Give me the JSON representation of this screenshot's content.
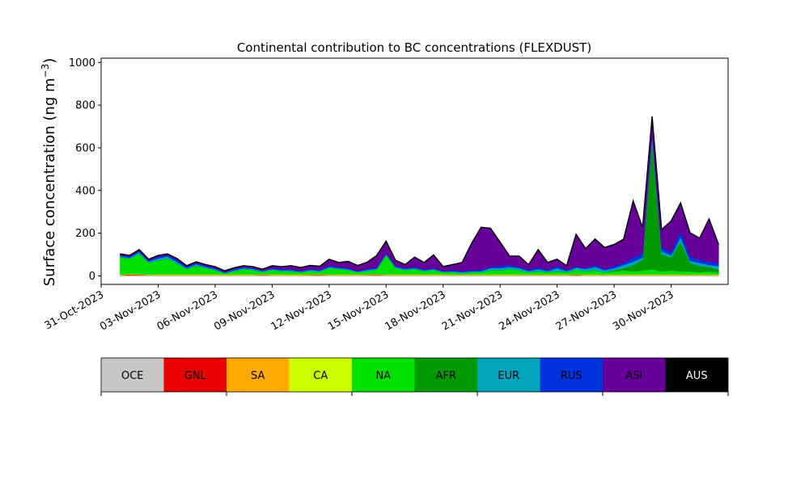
{
  "chart_data": {
    "type": "area",
    "stacked": true,
    "title": "Continental contribution to BC concentrations (FLEXDUST)",
    "ylabel": "Surface concentration (ng m",
    "ylabel_sup": "−3",
    "ylabel_close": ")",
    "xlabel": "",
    "grid": false,
    "legend_position": "bottom",
    "ylim": [
      -40,
      1020
    ],
    "xlim": [
      "2023-10-31",
      "2023-12-03"
    ],
    "y_ticks": [
      0,
      200,
      400,
      600,
      800,
      1000
    ],
    "x_ticks": [
      {
        "date": "2023-10-31",
        "label": "31-Oct-2023"
      },
      {
        "date": "2023-11-03",
        "label": "03-Nov-2023"
      },
      {
        "date": "2023-11-06",
        "label": "06-Nov-2023"
      },
      {
        "date": "2023-11-09",
        "label": "09-Nov-2023"
      },
      {
        "date": "2023-11-12",
        "label": "12-Nov-2023"
      },
      {
        "date": "2023-11-15",
        "label": "15-Nov-2023"
      },
      {
        "date": "2023-11-18",
        "label": "18-Nov-2023"
      },
      {
        "date": "2023-11-21",
        "label": "21-Nov-2023"
      },
      {
        "date": "2023-11-24",
        "label": "24-Nov-2023"
      },
      {
        "date": "2023-11-27",
        "label": "27-Nov-2023"
      },
      {
        "date": "2023-11-30",
        "label": "30-Nov-2023"
      }
    ],
    "x": [
      "2023-11-01",
      "2023-11-01T12",
      "2023-11-02",
      "2023-11-02T12",
      "2023-11-03",
      "2023-11-03T12",
      "2023-11-04",
      "2023-11-04T12",
      "2023-11-05",
      "2023-11-05T12",
      "2023-11-06",
      "2023-11-06T12",
      "2023-11-07",
      "2023-11-07T12",
      "2023-11-08",
      "2023-11-08T12",
      "2023-11-09",
      "2023-11-09T12",
      "2023-11-10",
      "2023-11-10T12",
      "2023-11-11",
      "2023-11-11T12",
      "2023-11-12",
      "2023-11-12T12",
      "2023-11-13",
      "2023-11-13T12",
      "2023-11-14",
      "2023-11-14T12",
      "2023-11-15",
      "2023-11-15T12",
      "2023-11-16",
      "2023-11-16T12",
      "2023-11-17",
      "2023-11-17T12",
      "2023-11-18",
      "2023-11-18T12",
      "2023-11-19",
      "2023-11-19T12",
      "2023-11-20",
      "2023-11-20T12",
      "2023-11-21",
      "2023-11-21T12",
      "2023-11-22",
      "2023-11-22T12",
      "2023-11-23",
      "2023-11-23T12",
      "2023-11-24",
      "2023-11-24T12",
      "2023-11-25",
      "2023-11-25T12",
      "2023-11-26",
      "2023-11-26T12",
      "2023-11-27",
      "2023-11-27T12",
      "2023-11-28",
      "2023-11-28T12",
      "2023-11-29",
      "2023-11-29T12",
      "2023-11-30",
      "2023-11-30T12",
      "2023-12-01",
      "2023-12-01T12",
      "2023-12-02",
      "2023-12-02T12"
    ],
    "series": [
      {
        "name": "OCE",
        "color": "#c8c8c8",
        "values": [
          2,
          2,
          2,
          2,
          2,
          2,
          2,
          2,
          2,
          2,
          2,
          2,
          2,
          2,
          2,
          2,
          2,
          2,
          2,
          2,
          2,
          2,
          2,
          2,
          2,
          2,
          2,
          2,
          2,
          2,
          2,
          2,
          2,
          2,
          2,
          2,
          2,
          2,
          2,
          2,
          2,
          2,
          2,
          2,
          2,
          2,
          2,
          2,
          2,
          2,
          2,
          2,
          2,
          2,
          2,
          2,
          2,
          2,
          2,
          2,
          2,
          2,
          2,
          2
        ]
      },
      {
        "name": "GNL",
        "color": "#e60000",
        "values": [
          1,
          4,
          3,
          1,
          1,
          1,
          1,
          1,
          1,
          1,
          1,
          1,
          1,
          1,
          1,
          3,
          1,
          1,
          1,
          1,
          2,
          3,
          1,
          1,
          1,
          1,
          2,
          3,
          1,
          1,
          1,
          1,
          1,
          1,
          1,
          1,
          1,
          1,
          1,
          1,
          1,
          1,
          1,
          1,
          1,
          1,
          1,
          1,
          3,
          1,
          1,
          1,
          1,
          1,
          1,
          1,
          1,
          1,
          1,
          1,
          1,
          1,
          1,
          1
        ]
      },
      {
        "name": "SA",
        "color": "#ffaa00",
        "values": [
          1,
          1,
          1,
          1,
          1,
          1,
          1,
          1,
          1,
          1,
          1,
          1,
          1,
          1,
          1,
          1,
          1,
          1,
          1,
          1,
          1,
          1,
          1,
          1,
          1,
          1,
          1,
          1,
          1,
          1,
          1,
          1,
          1,
          1,
          1,
          1,
          1,
          1,
          1,
          1,
          1,
          1,
          1,
          1,
          1,
          1,
          1,
          1,
          1,
          1,
          1,
          1,
          1,
          1,
          1,
          1,
          1,
          1,
          1,
          1,
          1,
          1,
          1,
          1
        ]
      },
      {
        "name": "CA",
        "color": "#ccff00",
        "values": [
          2,
          2,
          2,
          2,
          2,
          2,
          2,
          2,
          2,
          2,
          2,
          2,
          2,
          2,
          2,
          2,
          2,
          2,
          2,
          2,
          2,
          2,
          2,
          2,
          2,
          2,
          2,
          2,
          2,
          2,
          2,
          2,
          2,
          2,
          2,
          2,
          2,
          2,
          2,
          2,
          2,
          2,
          2,
          2,
          2,
          2,
          2,
          2,
          2,
          2,
          2,
          2,
          2,
          2,
          2,
          2,
          2,
          2,
          2,
          2,
          2,
          2,
          2,
          2
        ]
      },
      {
        "name": "NA",
        "color": "#00e100",
        "values": [
          80,
          70,
          95,
          55,
          65,
          75,
          50,
          25,
          40,
          30,
          20,
          5,
          15,
          25,
          20,
          10,
          20,
          15,
          15,
          10,
          15,
          10,
          30,
          25,
          20,
          10,
          15,
          20,
          90,
          30,
          20,
          25,
          15,
          20,
          10,
          10,
          5,
          10,
          10,
          20,
          20,
          25,
          20,
          10,
          15,
          10,
          15,
          10,
          20,
          15,
          20,
          10,
          15,
          20,
          15,
          20,
          25,
          15,
          20,
          15,
          15,
          10,
          15,
          10
        ]
      },
      {
        "name": "AFR",
        "color": "#009900",
        "values": [
          1,
          1,
          1,
          1,
          1,
          1,
          1,
          1,
          1,
          1,
          1,
          1,
          1,
          1,
          1,
          1,
          1,
          1,
          1,
          1,
          1,
          1,
          1,
          1,
          1,
          1,
          1,
          1,
          1,
          1,
          1,
          1,
          1,
          1,
          1,
          1,
          1,
          1,
          1,
          1,
          1,
          1,
          1,
          1,
          1,
          1,
          1,
          1,
          1,
          1,
          1,
          1,
          5,
          10,
          30,
          50,
          600,
          80,
          60,
          140,
          40,
          30,
          20,
          15
        ]
      },
      {
        "name": "EUR",
        "color": "#00a5bd",
        "values": [
          5,
          5,
          8,
          5,
          10,
          10,
          8,
          5,
          8,
          5,
          5,
          3,
          5,
          5,
          5,
          3,
          5,
          5,
          5,
          3,
          5,
          5,
          5,
          5,
          5,
          3,
          5,
          5,
          5,
          5,
          5,
          5,
          5,
          5,
          3,
          5,
          5,
          5,
          5,
          10,
          10,
          10,
          10,
          5,
          10,
          5,
          15,
          5,
          10,
          10,
          15,
          10,
          10,
          15,
          15,
          10,
          20,
          15,
          10,
          20,
          10,
          15,
          10,
          15
        ]
      },
      {
        "name": "RUS",
        "color": "#0033dd",
        "values": [
          5,
          5,
          5,
          5,
          8,
          5,
          10,
          5,
          5,
          5,
          5,
          3,
          5,
          5,
          5,
          3,
          5,
          5,
          5,
          3,
          5,
          5,
          5,
          5,
          5,
          3,
          5,
          5,
          5,
          5,
          5,
          5,
          5,
          5,
          3,
          5,
          5,
          5,
          5,
          5,
          10,
          10,
          5,
          5,
          10,
          5,
          10,
          5,
          5,
          5,
          10,
          5,
          10,
          10,
          20,
          20,
          20,
          20,
          15,
          30,
          20,
          15,
          15,
          15
        ]
      },
      {
        "name": "ASI",
        "color": "#660099",
        "values": [
          5,
          5,
          5,
          5,
          5,
          5,
          5,
          5,
          5,
          5,
          5,
          5,
          5,
          5,
          5,
          5,
          10,
          10,
          15,
          15,
          15,
          15,
          30,
          20,
          30,
          25,
          30,
          55,
          55,
          25,
          15,
          45,
          30,
          60,
          20,
          25,
          40,
          125,
          200,
          180,
          110,
          40,
          50,
          25,
          80,
          35,
          30,
          20,
          150,
          90,
          120,
          100,
          100,
          110,
          265,
          120,
          75,
          80,
          145,
          130,
          110,
          100,
          200,
          85
        ]
      },
      {
        "name": "AUS",
        "color": "#000000",
        "values": [
          1,
          1,
          1,
          1,
          1,
          1,
          1,
          1,
          1,
          1,
          1,
          1,
          1,
          1,
          1,
          1,
          1,
          1,
          1,
          1,
          1,
          1,
          1,
          1,
          1,
          1,
          1,
          1,
          1,
          1,
          1,
          1,
          1,
          1,
          1,
          1,
          1,
          1,
          1,
          1,
          1,
          1,
          1,
          1,
          1,
          1,
          1,
          1,
          1,
          1,
          1,
          1,
          1,
          1,
          1,
          1,
          1,
          1,
          1,
          1,
          1,
          1,
          1,
          1
        ]
      }
    ]
  }
}
